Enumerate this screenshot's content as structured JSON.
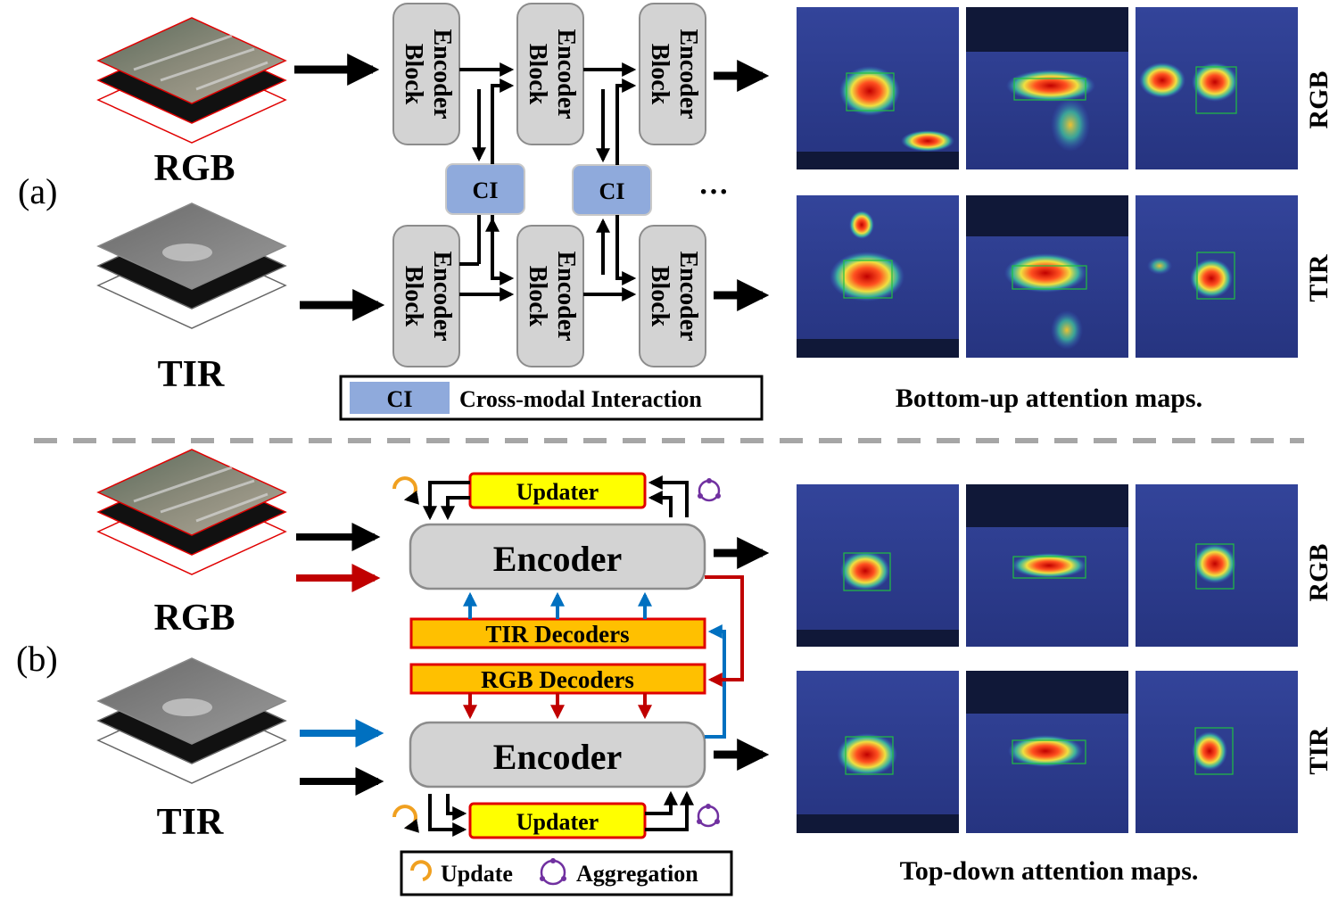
{
  "panel_a": {
    "label": "(a)",
    "rgb_label": "RGB",
    "tir_label": "TIR",
    "encoder_block_line1": "Encoder",
    "encoder_block_line2": "Block",
    "ci_label": "CI",
    "ellipsis": "···",
    "legend_ci": "CI",
    "legend_text": "Cross-modal Interaction",
    "row_label_rgb": "RGB",
    "row_label_tir": "TIR",
    "caption": "Bottom-up attention maps."
  },
  "panel_b": {
    "label": "(b)",
    "rgb_label": "RGB",
    "tir_label": "TIR",
    "encoder": "Encoder",
    "updater": "Updater",
    "tir_decoders": "TIR Decoders",
    "rgb_decoders": "RGB Decoders",
    "legend_update": "Update",
    "legend_aggregation": "Aggregation",
    "row_label_rgb": "RGB",
    "row_label_tir": "TIR",
    "caption": "Top-down attention maps."
  },
  "colors": {
    "block_fill": "#d3d3d3",
    "block_stroke": "#8c8c8c",
    "ci_fill": "#8faadc",
    "decoder_fill": "#ffc000",
    "updater_fill": "#ffff00",
    "red_border": "#e00000",
    "red_arrow": "#c00000",
    "blue_arrow": "#0070c0",
    "update_icon": "#f0a020",
    "aggregation_icon": "#7030a0",
    "map_background": "#2a3a8c",
    "divider": "#a6a6a6"
  },
  "icons": [
    "update-icon",
    "aggregation-icon",
    "rgb-frame-stack-icon",
    "tir-frame-stack-icon"
  ]
}
